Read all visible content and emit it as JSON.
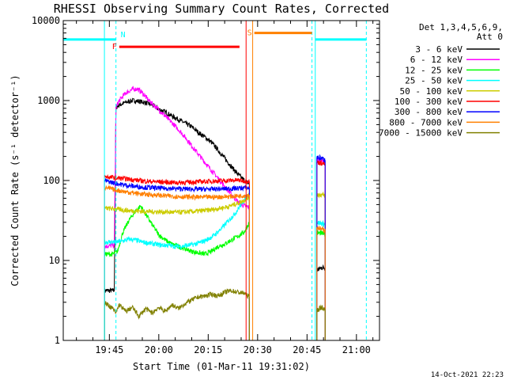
{
  "chart_data": {
    "type": "line",
    "title": "RHESSI Observing Summary Count Rates, Corrected",
    "xlabel": "Start Time (01-Mar-11 19:31:02)",
    "ylabel": "Corrected Count Rate (s⁻¹ detector⁻¹)",
    "y_scale": "log",
    "ylim": [
      1,
      10000
    ],
    "y_ticks": [
      1,
      10,
      100,
      1000,
      10000
    ],
    "y_tick_labels": [
      "1",
      "10",
      "100",
      "1000",
      "10000"
    ],
    "xlim_minutes": [
      0,
      96
    ],
    "x_ticks": [
      14.0,
      29.0,
      44.0,
      59.0,
      74.0,
      89.0
    ],
    "x_tick_labels": [
      "19:45",
      "20:00",
      "20:15",
      "20:30",
      "20:45",
      "21:00"
    ],
    "legend_header": [
      "Det 1,3,4,5,6,9,",
      "Att 0"
    ],
    "legend_position": "right",
    "timestamp": "14-Oct-2021 22:23",
    "flags": [
      {
        "label": "N",
        "color": "#00ffff",
        "segments": [
          [
            0,
            16.0,
            5800
          ],
          [
            76.5,
            92,
            5800
          ]
        ]
      },
      {
        "label": "F",
        "color": "#ff0000",
        "segments": [
          [
            17.0,
            53.5,
            4700
          ]
        ]
      },
      {
        "label": "S",
        "color": "#ff8000",
        "segments": [
          [
            58.0,
            75.5,
            7000
          ]
        ]
      }
    ],
    "vertical_markers": [
      {
        "t": 12.5,
        "color": "#00ffff",
        "dashed": false
      },
      {
        "t": 16.0,
        "color": "#00ffff",
        "dashed": true
      },
      {
        "t": 55.5,
        "color": "#ff0000",
        "dashed": false
      },
      {
        "t": 57.5,
        "color": "#ff8000",
        "dashed": false
      },
      {
        "t": 75.5,
        "color": "#00ffff",
        "dashed": true
      },
      {
        "t": 76.5,
        "color": "#00ffff",
        "dashed": false
      },
      {
        "t": 92.0,
        "color": "#00ffff",
        "dashed": true
      }
    ],
    "series": [
      {
        "name": "3 - 6 keV",
        "color": "#000000",
        "x": [
          12.5,
          15.5,
          16.0,
          17,
          19,
          21,
          23,
          25,
          27,
          29,
          31,
          33,
          35,
          37,
          39,
          41,
          43,
          45,
          47,
          49,
          51,
          53,
          55,
          56.5
        ],
        "y": [
          4.2,
          4.2,
          820,
          880,
          950,
          1000,
          980,
          940,
          880,
          780,
          720,
          640,
          580,
          520,
          470,
          400,
          350,
          300,
          240,
          190,
          150,
          120,
          100,
          90
        ],
        "x2": [
          77,
          78.5,
          79.5
        ],
        "y2": [
          7.5,
          8.2,
          8
        ]
      },
      {
        "name": "6 - 12 keV",
        "color": "#ff00ff",
        "x": [
          12.5,
          15.5,
          16.0,
          17,
          19,
          21,
          22.5,
          24,
          26,
          28,
          30,
          32,
          34,
          36,
          38,
          40,
          42,
          44,
          46,
          48,
          50,
          52,
          54,
          56.5
        ],
        "y": [
          15,
          15.5,
          820,
          1000,
          1250,
          1380,
          1400,
          1250,
          1000,
          840,
          700,
          580,
          480,
          390,
          310,
          240,
          190,
          150,
          120,
          95,
          75,
          60,
          50,
          46
        ],
        "x2": [
          77,
          78.5,
          79.5
        ],
        "y2": [
          185,
          178,
          175
        ]
      },
      {
        "name": "12 - 25 keV",
        "color": "#00ff00",
        "x": [
          12.5,
          15,
          16.5,
          18,
          20,
          22,
          23.5,
          25,
          27,
          29,
          31,
          33,
          35,
          37,
          39,
          41,
          43,
          45,
          47,
          49,
          51,
          53,
          55,
          56.5
        ],
        "y": [
          12,
          12,
          13,
          22,
          32,
          42,
          48,
          38,
          28,
          21,
          18,
          16,
          15,
          14,
          13,
          12.5,
          12,
          13,
          15,
          16,
          18,
          20,
          23,
          30
        ],
        "x2": [
          77,
          78.5,
          79.5
        ],
        "y2": [
          22,
          22,
          21
        ]
      },
      {
        "name": "25 - 50 keV",
        "color": "#00ffff",
        "x": [
          12.5,
          16,
          18,
          20,
          22,
          24,
          26,
          28,
          30,
          32,
          34,
          36,
          38,
          40,
          42,
          44,
          46,
          48,
          50,
          52,
          54,
          56.5
        ],
        "y": [
          17,
          17,
          17.5,
          18.5,
          18,
          17,
          16.5,
          16,
          15.5,
          15.5,
          15,
          15,
          15.5,
          16,
          17,
          18.5,
          21,
          25,
          31,
          38,
          50,
          70
        ],
        "x2": [
          77,
          78.5,
          79.5
        ],
        "y2": [
          30,
          29,
          28
        ]
      },
      {
        "name": "50 - 100 keV",
        "color": "#cccc00",
        "x": [
          12.5,
          16,
          20,
          25,
          30,
          35,
          40,
          45,
          50,
          53,
          55,
          56.5
        ],
        "y": [
          45,
          44,
          42,
          41,
          40.5,
          40,
          41,
          43,
          47,
          52,
          57,
          62
        ],
        "x2": [
          77,
          78.5,
          79.5
        ],
        "y2": [
          67,
          66,
          65
        ]
      },
      {
        "name": "100 - 300 keV",
        "color": "#ff0000",
        "x": [
          12.5,
          16,
          20,
          25,
          30,
          35,
          40,
          45,
          50,
          53,
          55,
          56.5
        ],
        "y": [
          112,
          108,
          104,
          98,
          96,
          94,
          96,
          98,
          100,
          101,
          99,
          98
        ],
        "x2": [
          77,
          78.5,
          79.5
        ],
        "y2": [
          170,
          165,
          160
        ]
      },
      {
        "name": "300 - 800 keV",
        "color": "#0000ff",
        "x": [
          12.5,
          16,
          20,
          25,
          30,
          35,
          40,
          45,
          50,
          53,
          55,
          56.5
        ],
        "y": [
          100,
          92,
          86,
          82,
          80,
          79,
          78,
          78,
          79,
          80,
          81,
          80
        ],
        "x2": [
          77,
          78.5,
          79.5
        ],
        "y2": [
          195,
          190,
          180
        ]
      },
      {
        "name": "800 - 7000 keV",
        "color": "#ff8000",
        "x": [
          12.5,
          16,
          20,
          25,
          30,
          35,
          40,
          45,
          50,
          53,
          55,
          56.5
        ],
        "y": [
          82,
          76,
          71,
          67,
          65,
          63,
          62,
          62,
          63,
          64,
          65,
          66
        ],
        "x2": [
          77,
          78.5,
          79.5
        ],
        "y2": [
          26,
          24.5,
          24
        ]
      },
      {
        "name": "7000 - 15000 keV",
        "color": "#808000",
        "x": [
          12.5,
          15,
          16,
          17,
          19,
          21,
          23,
          25,
          27,
          29,
          31,
          33,
          35,
          37,
          39,
          41,
          43,
          45,
          47,
          49,
          51,
          53,
          55,
          56.5
        ],
        "y": [
          3.0,
          2.5,
          2.2,
          2.8,
          2.3,
          2.6,
          2.0,
          2.5,
          2.2,
          2.6,
          2.3,
          2.8,
          2.5,
          2.9,
          3.2,
          3.5,
          3.6,
          3.8,
          3.6,
          4.0,
          4.2,
          4.0,
          3.9,
          3.5
        ],
        "x2": [
          77,
          78.5,
          79.5
        ],
        "y2": [
          2.4,
          2.6,
          2.4
        ]
      }
    ]
  }
}
